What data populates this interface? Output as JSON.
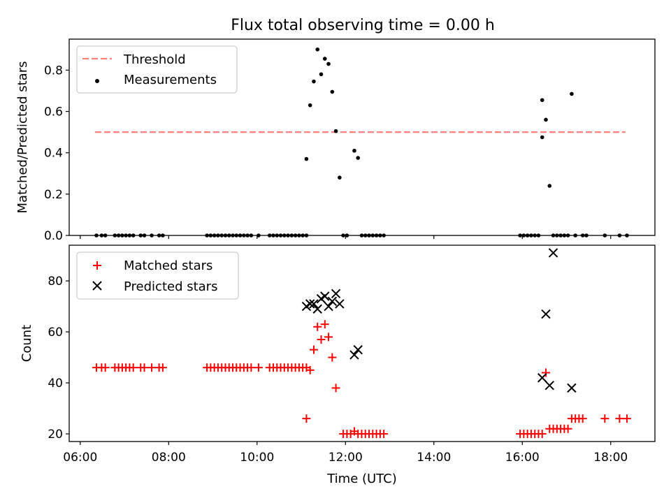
{
  "chart_data": [
    {
      "type": "scatter",
      "title": "Flux total observing time = 0.00 h",
      "ylabel": "Matched/Predicted stars",
      "xlabel": "",
      "xlim": [
        "05:45",
        "19:00"
      ],
      "ylim": [
        0,
        0.95
      ],
      "yticks": [
        "0.0",
        "0.2",
        "0.4",
        "0.6",
        "0.8"
      ],
      "legend_position": "top-left",
      "grid": false,
      "series": [
        {
          "name": "Threshold",
          "kind": "dashed-line",
          "color": "#ff7f7f",
          "x": [
            "06:20",
            "18:20"
          ],
          "y": [
            0.5,
            0.5
          ]
        },
        {
          "name": "Measurements",
          "kind": "dot",
          "color": "#000000",
          "x": [
            "06:22",
            "06:29",
            "06:34",
            "06:47",
            "06:52",
            "06:57",
            "07:02",
            "07:07",
            "07:12",
            "07:22",
            "07:27",
            "07:37",
            "07:47",
            "07:52",
            "08:52",
            "08:57",
            "09:02",
            "09:07",
            "09:12",
            "09:17",
            "09:22",
            "09:27",
            "09:32",
            "09:37",
            "09:42",
            "09:47",
            "09:52",
            "10:02",
            "10:17",
            "10:22",
            "10:27",
            "10:32",
            "10:37",
            "10:42",
            "10:47",
            "10:52",
            "10:57",
            "11:02",
            "11:07",
            "11:07",
            "11:12",
            "11:17",
            "11:22",
            "11:27",
            "11:32",
            "11:37",
            "11:42",
            "11:47",
            "11:52",
            "11:57",
            "12:02",
            "12:12",
            "12:17",
            "12:22",
            "12:27",
            "12:32",
            "12:37",
            "12:42",
            "12:47",
            "12:52",
            "15:57",
            "16:02",
            "16:07",
            "16:12",
            "16:17",
            "16:22",
            "16:27",
            "16:27",
            "16:32",
            "16:37",
            "16:42",
            "16:47",
            "16:52",
            "16:57",
            "17:02",
            "17:07",
            "17:12",
            "17:22",
            "17:27",
            "17:52",
            "18:12",
            "18:22"
          ],
          "y": [
            0,
            0,
            0,
            0,
            0,
            0,
            0,
            0,
            0,
            0,
            0,
            0,
            0,
            0,
            0,
            0,
            0,
            0,
            0,
            0,
            0,
            0,
            0,
            0,
            0,
            0,
            0,
            0,
            0,
            0,
            0,
            0,
            0,
            0,
            0,
            0,
            0,
            0,
            0,
            0.37,
            0.63,
            0.745,
            0.9,
            0.78,
            0.855,
            0.83,
            0.695,
            0.505,
            0.28,
            0,
            0,
            0.41,
            0.375,
            0,
            0,
            0,
            0,
            0,
            0,
            0,
            0,
            0,
            0,
            0,
            0,
            0,
            0.475,
            0.655,
            0.56,
            0.24,
            0,
            0,
            0,
            0,
            0,
            0.685,
            0,
            0,
            0,
            0,
            0,
            0
          ]
        }
      ]
    },
    {
      "type": "scatter",
      "title": "",
      "ylabel": "Count",
      "xlabel": "Time (UTC)",
      "xlim": [
        "05:45",
        "19:00"
      ],
      "ylim": [
        17,
        94
      ],
      "xticks": [
        "06:00",
        "08:00",
        "10:00",
        "12:00",
        "14:00",
        "16:00",
        "18:00"
      ],
      "yticks": [
        "20",
        "40",
        "60",
        "80"
      ],
      "legend_position": "top-left",
      "grid": false,
      "series": [
        {
          "name": "Matched stars",
          "marker": "+",
          "color": "#ff0000",
          "x": [
            "06:22",
            "06:29",
            "06:34",
            "06:47",
            "06:52",
            "06:57",
            "07:02",
            "07:07",
            "07:12",
            "07:22",
            "07:27",
            "07:37",
            "07:47",
            "07:52",
            "08:52",
            "08:57",
            "09:02",
            "09:07",
            "09:12",
            "09:17",
            "09:22",
            "09:27",
            "09:32",
            "09:37",
            "09:42",
            "09:47",
            "09:52",
            "10:02",
            "10:17",
            "10:22",
            "10:27",
            "10:32",
            "10:37",
            "10:42",
            "10:47",
            "10:52",
            "10:57",
            "11:02",
            "11:07",
            "11:07",
            "11:12",
            "11:17",
            "11:22",
            "11:27",
            "11:32",
            "11:37",
            "11:42",
            "11:47",
            "11:57",
            "12:02",
            "12:07",
            "12:12",
            "12:17",
            "12:22",
            "12:27",
            "12:32",
            "12:37",
            "12:42",
            "12:47",
            "12:52",
            "15:57",
            "16:02",
            "16:07",
            "16:12",
            "16:17",
            "16:22",
            "16:27",
            "16:32",
            "16:37",
            "16:42",
            "16:47",
            "16:52",
            "16:57",
            "17:02",
            "17:07",
            "17:12",
            "17:17",
            "17:22",
            "17:52",
            "18:12",
            "18:22"
          ],
          "y": [
            46,
            46,
            46,
            46,
            46,
            46,
            46,
            46,
            46,
            46,
            46,
            46,
            46,
            46,
            46,
            46,
            46,
            46,
            46,
            46,
            46,
            46,
            46,
            46,
            46,
            46,
            46,
            46,
            46,
            46,
            46,
            46,
            46,
            46,
            46,
            46,
            46,
            46,
            46,
            26,
            45,
            53,
            62,
            57,
            63,
            58,
            50,
            38,
            20,
            20,
            20,
            21,
            20,
            20,
            20,
            20,
            20,
            20,
            20,
            20,
            20,
            20,
            20,
            20,
            20,
            20,
            20,
            44,
            22,
            22,
            22,
            22,
            22,
            22,
            26,
            26,
            26,
            26,
            26,
            26,
            26
          ]
        },
        {
          "name": "Predicted stars",
          "marker": "x",
          "color": "#000000",
          "x": [
            "11:07",
            "11:12",
            "11:17",
            "11:22",
            "11:27",
            "11:32",
            "11:37",
            "11:42",
            "11:47",
            "11:52",
            "12:12",
            "12:17",
            "16:27",
            "16:32",
            "16:37",
            "16:42",
            "17:07"
          ],
          "y": [
            70,
            71,
            71,
            69,
            73,
            74,
            70,
            72,
            75,
            71,
            51,
            53,
            42,
            67,
            39,
            91,
            38
          ]
        }
      ]
    }
  ]
}
